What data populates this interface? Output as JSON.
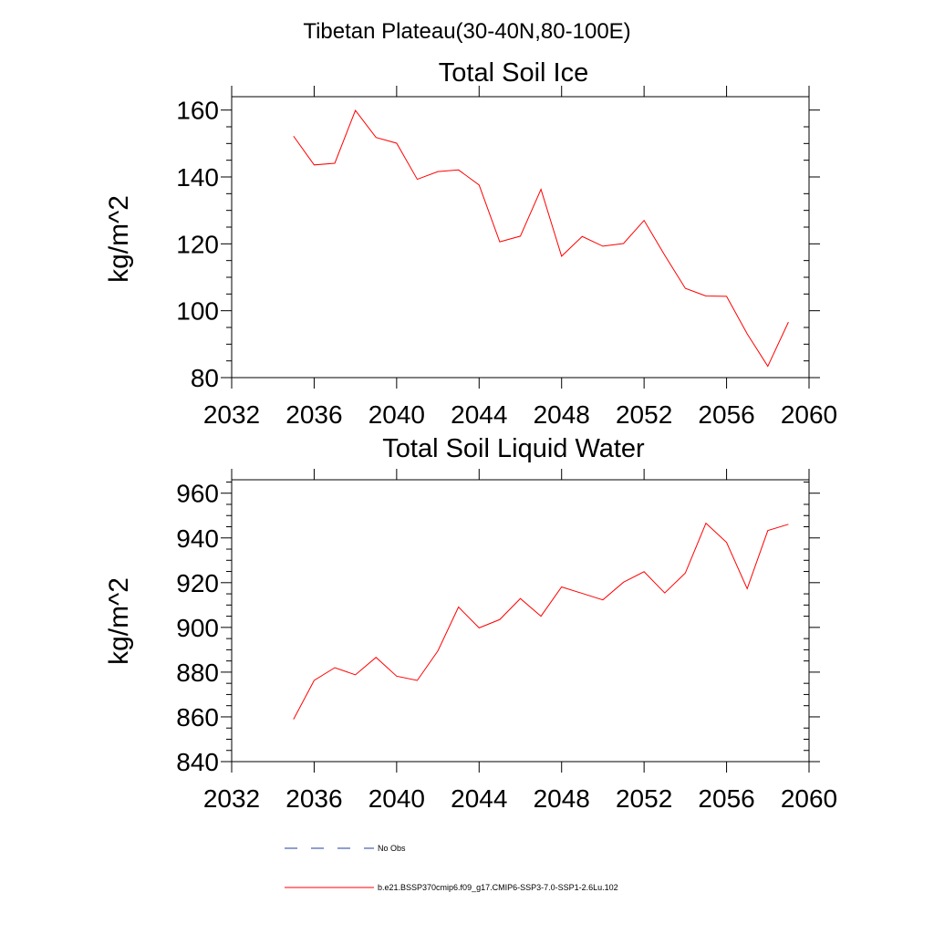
{
  "figure": {
    "main_title": "Tibetan Plateau(30-40N,80-100E)"
  },
  "legend": {
    "placement": "bottom-left",
    "items": [
      {
        "label": "No Obs",
        "color": "#1f3f9f",
        "style": "dashed"
      },
      {
        "label": "b.e21.BSSP370cmip6.f09_g17.CMIP6-SSP3-7.0-SSP1-2.6Lu.102",
        "color": "#ff0000",
        "style": "solid"
      }
    ]
  },
  "chart_data": [
    {
      "type": "line",
      "title": "Total Soil Ice",
      "xlabel": "",
      "ylabel": "kg/m^2",
      "xlim": [
        2032,
        2060
      ],
      "ylim": [
        80,
        164
      ],
      "xticks": [
        2032,
        2036,
        2040,
        2044,
        2048,
        2052,
        2056,
        2060
      ],
      "yticks": [
        80,
        100,
        120,
        140,
        160
      ],
      "x_minor_step": 1,
      "y_minor_step": 5,
      "grid": false,
      "x": [
        2035,
        2036,
        2037,
        2038,
        2039,
        2040,
        2041,
        2042,
        2043,
        2044,
        2045,
        2046,
        2047,
        2048,
        2049,
        2050,
        2051,
        2052,
        2053,
        2054,
        2055,
        2056,
        2057,
        2058,
        2059
      ],
      "series": [
        {
          "color": "#ff0000",
          "values": [
            152.2,
            143.6,
            144.1,
            159.9,
            151.8,
            150.1,
            139.3,
            141.6,
            142.1,
            137.6,
            120.6,
            122.3,
            136.3,
            116.3,
            122.2,
            119.3,
            120.1,
            127.0,
            116.6,
            106.7,
            104.4,
            104.3,
            93.1,
            83.4,
            96.6
          ]
        }
      ]
    },
    {
      "type": "line",
      "title": "Total Soil Liquid Water",
      "xlabel": "",
      "ylabel": "kg/m^2",
      "xlim": [
        2032,
        2060
      ],
      "ylim": [
        840,
        966
      ],
      "xticks": [
        2032,
        2036,
        2040,
        2044,
        2048,
        2052,
        2056,
        2060
      ],
      "yticks": [
        840,
        860,
        880,
        900,
        920,
        940,
        960
      ],
      "x_minor_step": 1,
      "y_minor_step": 5,
      "grid": false,
      "x": [
        2035,
        2036,
        2037,
        2038,
        2039,
        2040,
        2041,
        2042,
        2043,
        2044,
        2045,
        2046,
        2047,
        2048,
        2049,
        2050,
        2051,
        2052,
        2053,
        2054,
        2055,
        2056,
        2057,
        2058,
        2059
      ],
      "series": [
        {
          "color": "#ff0000",
          "values": [
            858.9,
            876.3,
            882.0,
            878.8,
            886.6,
            878.2,
            876.3,
            889.5,
            909.1,
            899.8,
            903.5,
            912.9,
            905.0,
            918.1,
            915.2,
            912.3,
            920.2,
            924.9,
            915.4,
            924.3,
            946.6,
            938.0,
            917.3,
            943.3,
            946.1
          ]
        }
      ]
    }
  ]
}
